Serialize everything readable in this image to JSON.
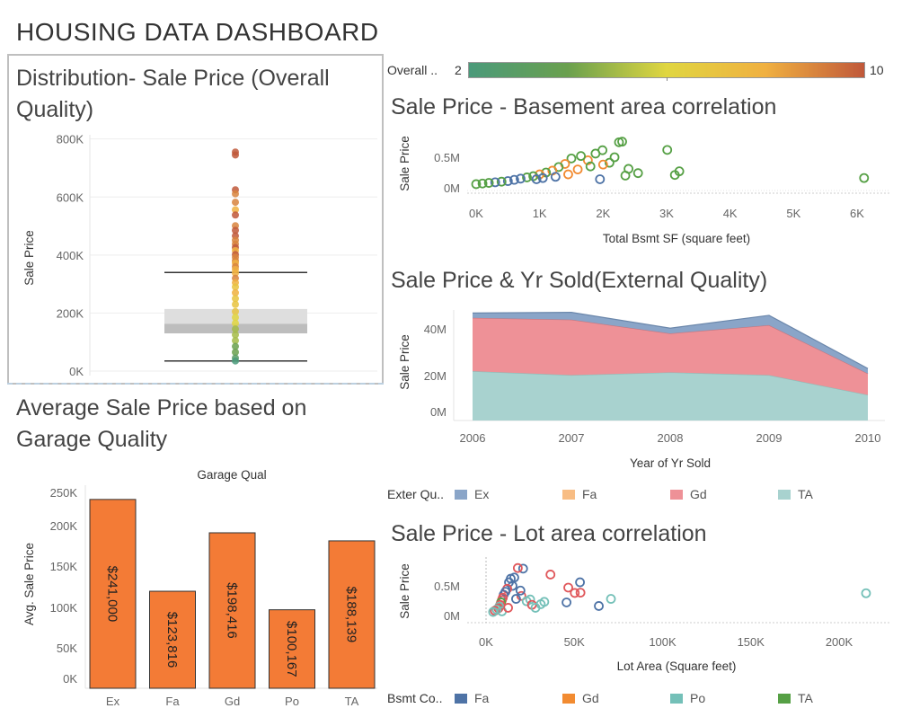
{
  "dashboard_title": "HOUSING DATA DASHBOARD",
  "color_legend": {
    "label": "Overall ..",
    "min": "2",
    "max": "10",
    "colors": [
      "#4a9a7a",
      "#6aa04e",
      "#e0d640",
      "#f0b040",
      "#c0583a"
    ]
  },
  "titles": {
    "box": "Distribution- Sale Price (Overall Quality)",
    "basement": "Sale Price - Basement area correlation",
    "yrsold": "Sale Price & Yr Sold(External Quality)",
    "garage": "Average Sale Price based on Garage Quality",
    "lot": "Sale Price - Lot area correlation"
  },
  "legends": {
    "exter": {
      "label": "Exter Qu..",
      "items": [
        {
          "name": "Ex",
          "color": "#8aa5c8"
        },
        {
          "name": "Fa",
          "color": "#f8bd84"
        },
        {
          "name": "Gd",
          "color": "#ee9197"
        },
        {
          "name": "TA",
          "color": "#a8d2cf"
        }
      ]
    },
    "bsmt": {
      "label": "Bsmt Co..",
      "items": [
        {
          "name": "Fa",
          "color": "#4e73a6"
        },
        {
          "name": "Gd",
          "color": "#f28b31"
        },
        {
          "name": "Po",
          "color": "#74c0b8"
        },
        {
          "name": "TA",
          "color": "#56a045"
        }
      ]
    }
  },
  "chart_data": [
    {
      "id": "box",
      "type": "scatter",
      "ylabel": "Sale Price",
      "yticks": [
        "800K",
        "600K",
        "400K",
        "200K",
        "0K"
      ],
      "ylim": [
        0,
        830000
      ],
      "box": {
        "whisker_low": 34900,
        "q1": 130000,
        "median": 163000,
        "q3": 214000,
        "whisker_high": 340000
      },
      "points": [
        {
          "y": 755000,
          "q": 10
        },
        {
          "y": 745000,
          "q": 10
        },
        {
          "y": 625000,
          "q": 10
        },
        {
          "y": 611000,
          "q": 9
        },
        {
          "y": 582000,
          "q": 9
        },
        {
          "y": 556000,
          "q": 8
        },
        {
          "y": 538000,
          "q": 10
        },
        {
          "y": 501000,
          "q": 9
        },
        {
          "y": 485000,
          "q": 10
        },
        {
          "y": 466000,
          "q": 10
        },
        {
          "y": 451000,
          "q": 9
        },
        {
          "y": 438000,
          "q": 9
        },
        {
          "y": 426000,
          "q": 10
        },
        {
          "y": 415000,
          "q": 8
        },
        {
          "y": 402000,
          "q": 10
        },
        {
          "y": 392000,
          "q": 9
        },
        {
          "y": 380000,
          "q": 9
        },
        {
          "y": 372000,
          "q": 8
        },
        {
          "y": 360000,
          "q": 9
        },
        {
          "y": 350000,
          "q": 8
        },
        {
          "y": 338000,
          "q": 8
        },
        {
          "y": 320000,
          "q": 9
        },
        {
          "y": 305000,
          "q": 8
        },
        {
          "y": 290000,
          "q": 7
        },
        {
          "y": 270000,
          "q": 8
        },
        {
          "y": 250000,
          "q": 7
        },
        {
          "y": 230000,
          "q": 7
        },
        {
          "y": 205000,
          "q": 7
        },
        {
          "y": 185000,
          "q": 6
        },
        {
          "y": 165000,
          "q": 6
        },
        {
          "y": 145000,
          "q": 5
        },
        {
          "y": 125000,
          "q": 5
        },
        {
          "y": 105000,
          "q": 5
        },
        {
          "y": 85000,
          "q": 4
        },
        {
          "y": 65000,
          "q": 4
        },
        {
          "y": 45000,
          "q": 3
        },
        {
          "y": 35000,
          "q": 2
        }
      ]
    },
    {
      "id": "basement",
      "type": "scatter",
      "xlabel": "Total Bsmt SF (square feet)",
      "ylabel": "Sale Price",
      "xticks": [
        "0K",
        "1K",
        "2K",
        "3K",
        "4K",
        "5K",
        "6K"
      ],
      "yticks": [
        "0.5M",
        "0M"
      ],
      "xlim": [
        0,
        6300
      ],
      "ylim": [
        0,
        850000
      ],
      "points": [
        {
          "x": 6110,
          "y": 160000,
          "c": "TA"
        },
        {
          "x": 3200,
          "y": 270000,
          "c": "TA"
        },
        {
          "x": 3130,
          "y": 210000,
          "c": "TA"
        },
        {
          "x": 3010,
          "y": 620000,
          "c": "TA"
        },
        {
          "x": 2300,
          "y": 755000,
          "c": "TA"
        },
        {
          "x": 2250,
          "y": 745000,
          "c": "TA"
        },
        {
          "x": 2400,
          "y": 310000,
          "c": "TA"
        },
        {
          "x": 2180,
          "y": 500000,
          "c": "TA"
        },
        {
          "x": 1990,
          "y": 615000,
          "c": "TA"
        },
        {
          "x": 1880,
          "y": 560000,
          "c": "TA"
        },
        {
          "x": 1760,
          "y": 450000,
          "c": "Gd"
        },
        {
          "x": 2100,
          "y": 410000,
          "c": "TA"
        },
        {
          "x": 1650,
          "y": 520000,
          "c": "TA"
        },
        {
          "x": 1500,
          "y": 480000,
          "c": "TA"
        },
        {
          "x": 1400,
          "y": 390000,
          "c": "Gd"
        },
        {
          "x": 1300,
          "y": 340000,
          "c": "TA"
        },
        {
          "x": 1200,
          "y": 280000,
          "c": "Gd"
        },
        {
          "x": 1100,
          "y": 250000,
          "c": "TA"
        },
        {
          "x": 1000,
          "y": 220000,
          "c": "Gd"
        },
        {
          "x": 900,
          "y": 190000,
          "c": "TA"
        },
        {
          "x": 800,
          "y": 170000,
          "c": "TA"
        },
        {
          "x": 700,
          "y": 150000,
          "c": "Fa"
        },
        {
          "x": 600,
          "y": 130000,
          "c": "Fa"
        },
        {
          "x": 500,
          "y": 110000,
          "c": "Fa"
        },
        {
          "x": 400,
          "y": 100000,
          "c": "TA"
        },
        {
          "x": 300,
          "y": 90000,
          "c": "Fa"
        },
        {
          "x": 200,
          "y": 80000,
          "c": "TA"
        },
        {
          "x": 100,
          "y": 70000,
          "c": "TA"
        },
        {
          "x": 0,
          "y": 60000,
          "c": "TA"
        },
        {
          "x": 1600,
          "y": 300000,
          "c": "Gd"
        },
        {
          "x": 1800,
          "y": 350000,
          "c": "TA"
        },
        {
          "x": 2000,
          "y": 380000,
          "c": "Gd"
        },
        {
          "x": 1250,
          "y": 180000,
          "c": "Fa"
        },
        {
          "x": 950,
          "y": 140000,
          "c": "Fa"
        },
        {
          "x": 1050,
          "y": 160000,
          "c": "Fa"
        },
        {
          "x": 2350,
          "y": 200000,
          "c": "TA"
        },
        {
          "x": 1950,
          "y": 140000,
          "c": "Fa"
        },
        {
          "x": 2550,
          "y": 240000,
          "c": "TA"
        },
        {
          "x": 1450,
          "y": 220000,
          "c": "Gd"
        }
      ]
    },
    {
      "id": "yrsold",
      "type": "area",
      "xlabel": "Year of Yr Sold",
      "ylabel": "Sale Price",
      "x": [
        "2006",
        "2007",
        "2008",
        "2009",
        "2010"
      ],
      "yticks": [
        "40M",
        "20M",
        "0M"
      ],
      "ylim": [
        0,
        50000000
      ],
      "series": [
        {
          "name": "TA",
          "values": [
            21500000,
            19800000,
            21000000,
            19800000,
            11200000
          ]
        },
        {
          "name": "Gd",
          "values": [
            23300000,
            24200000,
            17000000,
            21800000,
            9300000
          ]
        },
        {
          "name": "Fa",
          "values": [
            0,
            0,
            0,
            0,
            0
          ]
        },
        {
          "name": "Ex",
          "values": [
            2100000,
            3200000,
            2300000,
            4300000,
            2200000
          ]
        }
      ]
    },
    {
      "id": "garage",
      "type": "bar",
      "title": "Garage Qual",
      "ylabel": "Avg. Sale Price",
      "categories": [
        "Ex",
        "Fa",
        "Gd",
        "Po",
        "TA"
      ],
      "values": [
        241000,
        123816,
        198416,
        100167,
        188139
      ],
      "labels": [
        "$241,000",
        "$123,816",
        "$198,416",
        "$100,167",
        "$188,139"
      ],
      "yticks": [
        "250K",
        "200K",
        "150K",
        "100K",
        "50K",
        "0K"
      ],
      "ylim": [
        0,
        250000
      ],
      "color": "#f37b36"
    },
    {
      "id": "lot",
      "type": "scatter",
      "xlabel": "Lot Area (Square feet)",
      "ylabel": "Sale Price",
      "xticks": [
        "0K",
        "50K",
        "100K",
        "150K",
        "200K"
      ],
      "yticks": [
        "0.5M",
        "0M"
      ],
      "xlim": [
        0,
        215000
      ],
      "ylim": [
        0,
        850000
      ],
      "points": [
        {
          "x": 215245,
          "y": 375000,
          "c": "Po"
        },
        {
          "x": 70761,
          "y": 280000,
          "c": "Po"
        },
        {
          "x": 63887,
          "y": 160000,
          "c": "Fa"
        },
        {
          "x": 53504,
          "y": 385000,
          "c": "Gd"
        },
        {
          "x": 53227,
          "y": 560000,
          "c": "Fa"
        },
        {
          "x": 46589,
          "y": 470000,
          "c": "Gd"
        },
        {
          "x": 45600,
          "y": 220000,
          "c": "Fa"
        },
        {
          "x": 50271,
          "y": 380000,
          "c": "Gd"
        },
        {
          "x": 36500,
          "y": 690000,
          "c": "Gd"
        },
        {
          "x": 31000,
          "y": 190000,
          "c": "Po"
        },
        {
          "x": 33000,
          "y": 230000,
          "c": "Po"
        },
        {
          "x": 25000,
          "y": 270000,
          "c": "Po"
        },
        {
          "x": 21000,
          "y": 790000,
          "c": "Fa"
        },
        {
          "x": 18000,
          "y": 800000,
          "c": "Gd"
        },
        {
          "x": 16000,
          "y": 640000,
          "c": "Fa"
        },
        {
          "x": 14000,
          "y": 620000,
          "c": "Fa"
        },
        {
          "x": 13000,
          "y": 560000,
          "c": "Fa"
        },
        {
          "x": 15000,
          "y": 500000,
          "c": "Fa"
        },
        {
          "x": 12000,
          "y": 450000,
          "c": "Gd"
        },
        {
          "x": 11000,
          "y": 400000,
          "c": "Fa"
        },
        {
          "x": 10000,
          "y": 350000,
          "c": "Fa"
        },
        {
          "x": 9500,
          "y": 300000,
          "c": "Gd"
        },
        {
          "x": 9000,
          "y": 260000,
          "c": "Gd"
        },
        {
          "x": 8500,
          "y": 220000,
          "c": "TA"
        },
        {
          "x": 8000,
          "y": 180000,
          "c": "Gd"
        },
        {
          "x": 7500,
          "y": 150000,
          "c": "Po"
        },
        {
          "x": 7000,
          "y": 120000,
          "c": "Gd"
        },
        {
          "x": 6000,
          "y": 100000,
          "c": "Po"
        },
        {
          "x": 5000,
          "y": 80000,
          "c": "Gd"
        },
        {
          "x": 4000,
          "y": 60000,
          "c": "Po"
        },
        {
          "x": 20000,
          "y": 330000,
          "c": "Gd"
        },
        {
          "x": 23000,
          "y": 240000,
          "c": "Po"
        },
        {
          "x": 26000,
          "y": 180000,
          "c": "Gd"
        },
        {
          "x": 17000,
          "y": 280000,
          "c": "Fa"
        },
        {
          "x": 19500,
          "y": 420000,
          "c": "Fa"
        },
        {
          "x": 28000,
          "y": 130000,
          "c": "Po"
        },
        {
          "x": 9000,
          "y": 70000,
          "c": "Po"
        },
        {
          "x": 12500,
          "y": 130000,
          "c": "Gd"
        }
      ]
    }
  ]
}
